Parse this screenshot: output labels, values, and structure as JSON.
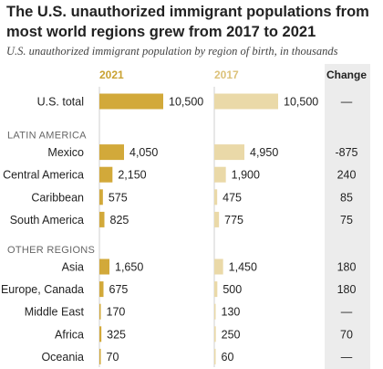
{
  "title": "The U.S. unauthorized immigrant populations from most world regions grew from 2017 to 2021",
  "subtitle": "U.S. unauthorized immigrant population by region of birth, in thousands",
  "colors": {
    "bar_2021": "#d2a93a",
    "bar_2017": "#ead9a8",
    "header_2021": "#c9a232",
    "header_2017": "#dcc27a",
    "change_bg": "#ececec"
  },
  "chart_data": {
    "type": "bar",
    "xlim": [
      0,
      10500
    ],
    "columns": {
      "year_a": "2021",
      "year_b": "2017",
      "change": "Change"
    },
    "groups": [
      {
        "name": "",
        "rows": [
          {
            "label": "U.S. total",
            "v2021": 10500,
            "v2017": 10500,
            "v2021_text": "10,500",
            "v2017_text": "10,500",
            "change": "—"
          }
        ]
      },
      {
        "name": "LATIN AMERICA",
        "rows": [
          {
            "label": "Mexico",
            "v2021": 4050,
            "v2017": 4950,
            "v2021_text": "4,050",
            "v2017_text": "4,950",
            "change": "-875"
          },
          {
            "label": "Central America",
            "v2021": 2150,
            "v2017": 1900,
            "v2021_text": "2,150",
            "v2017_text": "1,900",
            "change": "240"
          },
          {
            "label": "Caribbean",
            "v2021": 575,
            "v2017": 475,
            "v2021_text": "575",
            "v2017_text": "475",
            "change": "85"
          },
          {
            "label": "South America",
            "v2021": 825,
            "v2017": 775,
            "v2021_text": "825",
            "v2017_text": "775",
            "change": "75"
          }
        ]
      },
      {
        "name": "OTHER REGIONS",
        "rows": [
          {
            "label": "Asia",
            "v2021": 1650,
            "v2017": 1450,
            "v2021_text": "1,650",
            "v2017_text": "1,450",
            "change": "180"
          },
          {
            "label": "Europe, Canada",
            "v2021": 675,
            "v2017": 500,
            "v2021_text": "675",
            "v2017_text": "500",
            "change": "180"
          },
          {
            "label": "Middle East",
            "v2021": 170,
            "v2017": 130,
            "v2021_text": "170",
            "v2017_text": "130",
            "change": "—"
          },
          {
            "label": "Africa",
            "v2021": 325,
            "v2017": 250,
            "v2021_text": "325",
            "v2017_text": "250",
            "change": "70"
          },
          {
            "label": "Oceania",
            "v2021": 70,
            "v2017": 60,
            "v2021_text": "70",
            "v2017_text": "60",
            "change": "—"
          }
        ]
      }
    ]
  }
}
